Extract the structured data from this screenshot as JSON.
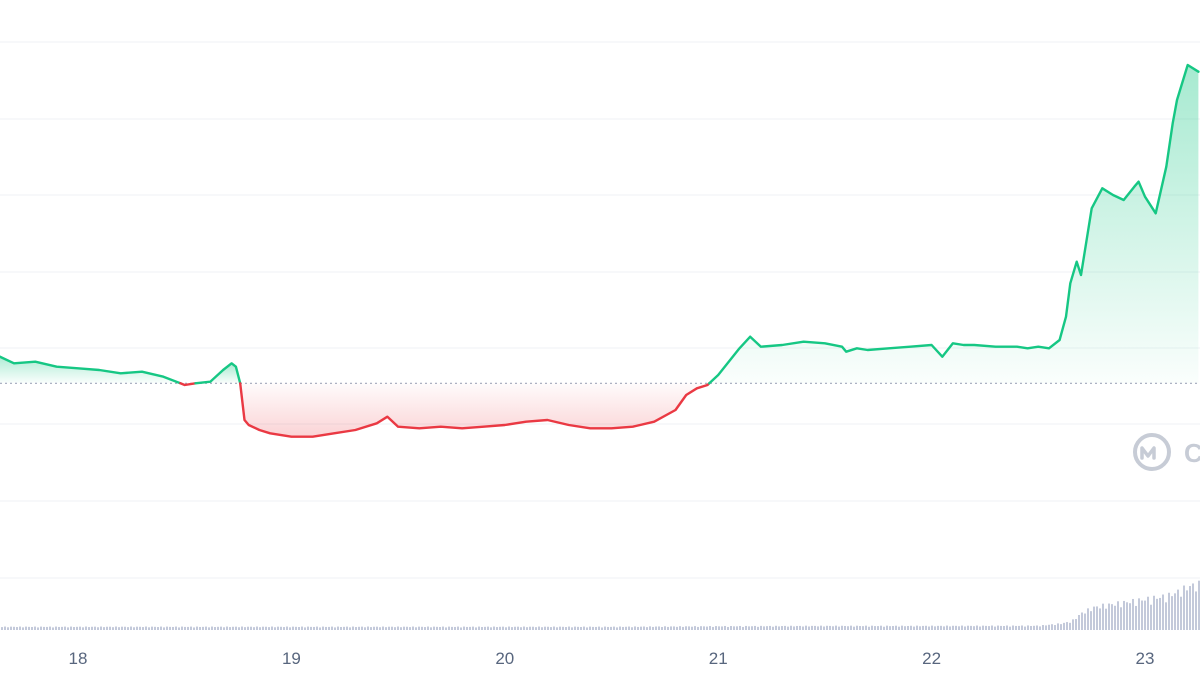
{
  "chart_data": {
    "type": "line",
    "x_tick_labels": [
      "18",
      "19",
      "20",
      "21",
      "22",
      "23"
    ],
    "reference_value": 100,
    "ylim": [
      87,
      123
    ],
    "grid": true,
    "colors": {
      "up": "#16c784",
      "down": "#ea3943",
      "grid": "#eff2f5",
      "reference": "#a1a7bb",
      "volume": "#c3c9da",
      "axis_text": "#58667e",
      "watermark": "#c7ccd6"
    },
    "series": [
      {
        "x": [
          17.6,
          17.7,
          17.8,
          17.9,
          18.0,
          18.1,
          18.2,
          18.3,
          18.4,
          18.5,
          18.55,
          18.62,
          18.68,
          18.72,
          18.74,
          18.76,
          18.78,
          18.8,
          18.85,
          18.9,
          19.0,
          19.1,
          19.2,
          19.3,
          19.4,
          19.45,
          19.5,
          19.6,
          19.7,
          19.8,
          19.9,
          20.0,
          20.1,
          20.2,
          20.3,
          20.4,
          20.5,
          20.6,
          20.7,
          20.8,
          20.85,
          20.9,
          20.95,
          21.0,
          21.1,
          21.15,
          21.2,
          21.3,
          21.4,
          21.5,
          21.58,
          21.6,
          21.65,
          21.7,
          21.8,
          21.9,
          22.0,
          22.05,
          22.1,
          22.15,
          22.2,
          22.3,
          22.4,
          22.45,
          22.5,
          22.55,
          22.6,
          22.63,
          22.65,
          22.68,
          22.7,
          22.75,
          22.8,
          22.85,
          22.9,
          22.95,
          22.97,
          23.0,
          23.05,
          23.1,
          23.13,
          23.15,
          23.2,
          23.25
        ],
        "y": [
          101.8,
          101.2,
          101.3,
          101.0,
          100.9,
          100.8,
          100.6,
          100.7,
          100.4,
          99.9,
          100.0,
          100.1,
          100.8,
          101.2,
          101.0,
          100.0,
          97.8,
          97.5,
          97.2,
          97.0,
          96.8,
          96.8,
          97.0,
          97.2,
          97.6,
          98.0,
          97.4,
          97.3,
          97.4,
          97.3,
          97.4,
          97.5,
          97.7,
          97.8,
          97.5,
          97.3,
          97.3,
          97.4,
          97.7,
          98.4,
          99.3,
          99.7,
          99.9,
          100.5,
          102.1,
          102.8,
          102.2,
          102.3,
          102.5,
          102.4,
          102.2,
          101.9,
          102.1,
          102.0,
          102.1,
          102.2,
          102.3,
          101.6,
          102.4,
          102.3,
          102.3,
          102.2,
          102.2,
          102.1,
          102.2,
          102.1,
          102.6,
          104.0,
          106.0,
          107.3,
          106.5,
          110.5,
          111.7,
          111.3,
          111.0,
          111.8,
          112.1,
          111.2,
          110.2,
          113.0,
          115.6,
          117.0,
          119.1,
          118.7
        ]
      }
    ],
    "volume": {
      "x": [
        17.6,
        18.0,
        18.5,
        19.0,
        19.5,
        20.0,
        20.5,
        21.0,
        21.5,
        22.0,
        22.5,
        22.6,
        22.65,
        22.7,
        22.75,
        22.8,
        22.9,
        23.0,
        23.1,
        23.15,
        23.2,
        23.25
      ],
      "values": [
        3,
        3,
        3,
        3,
        3,
        3,
        3,
        3.5,
        3.8,
        3.8,
        4,
        6,
        8,
        16,
        21,
        23,
        26,
        29,
        32,
        36,
        41,
        43
      ]
    }
  },
  "watermark": {
    "text": "C",
    "icon": "coinmarketcap-logo"
  }
}
